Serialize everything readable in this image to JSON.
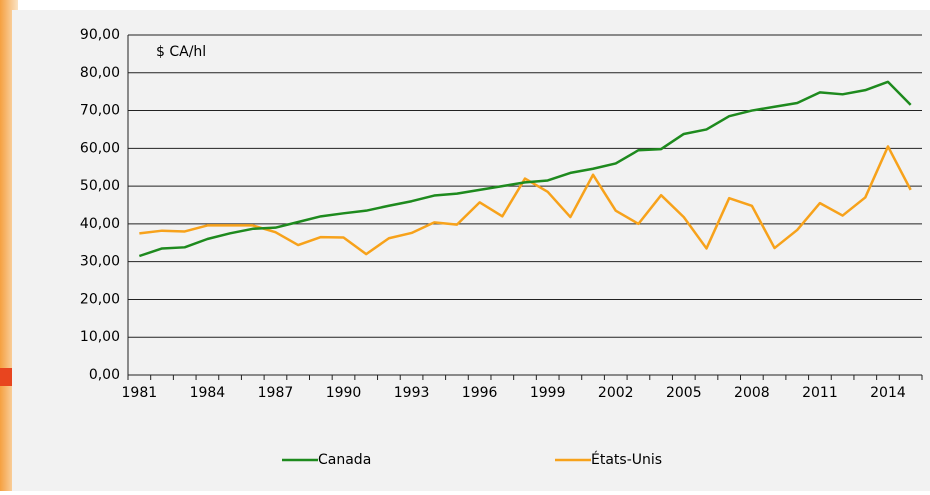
{
  "chart_data": {
    "type": "line",
    "annotation": "$ CA/hl",
    "categories": [
      "1981",
      null,
      null,
      "1984",
      null,
      null,
      "1987",
      null,
      null,
      "1990",
      null,
      null,
      "1993",
      null,
      null,
      "1996",
      null,
      null,
      "1999",
      null,
      null,
      "2002",
      null,
      null,
      "2005",
      null,
      null,
      "2008",
      null,
      null,
      "2011",
      null,
      null,
      "2014",
      null
    ],
    "series": [
      {
        "name": "Canada",
        "color": "#1e8a1e",
        "values": [
          31.5,
          33.5,
          33.8,
          36,
          37.5,
          38.7,
          39,
          40.5,
          42,
          42.8,
          43.5,
          44.8,
          46,
          47.5,
          48,
          49,
          50,
          51,
          51.5,
          53.5,
          54.6,
          56,
          59.5,
          59.8,
          63.8,
          65,
          68.5,
          70,
          71,
          72,
          74.8,
          74.3,
          75.4,
          77.6,
          71.5
        ]
      },
      {
        "name": "États-Unis",
        "color": "#f7a21b",
        "values": [
          37.5,
          38.2,
          38,
          39.6,
          39.6,
          39.6,
          37.8,
          34.4,
          36.5,
          36.4,
          32,
          36.2,
          37.6,
          40.4,
          39.8,
          45.7,
          42,
          52,
          48.5,
          41.8,
          53,
          43.5,
          40,
          47.6,
          41.8,
          33.5,
          46.8,
          44.8,
          33.6,
          38.4,
          45.5,
          42.2,
          47,
          60.5,
          49
        ]
      }
    ],
    "ylim": [
      0,
      90
    ],
    "yticks": [
      {
        "value": 0,
        "label": "0,00"
      },
      {
        "value": 10,
        "label": "10,00"
      },
      {
        "value": 20,
        "label": "20,00"
      },
      {
        "value": 30,
        "label": "30,00"
      },
      {
        "value": 40,
        "label": "40,00"
      },
      {
        "value": 50,
        "label": "50,00"
      },
      {
        "value": 60,
        "label": "60,00"
      },
      {
        "value": 70,
        "label": "70,00"
      },
      {
        "value": 80,
        "label": "80,00"
      },
      {
        "value": 90,
        "label": "90,00"
      }
    ],
    "grid": true
  }
}
